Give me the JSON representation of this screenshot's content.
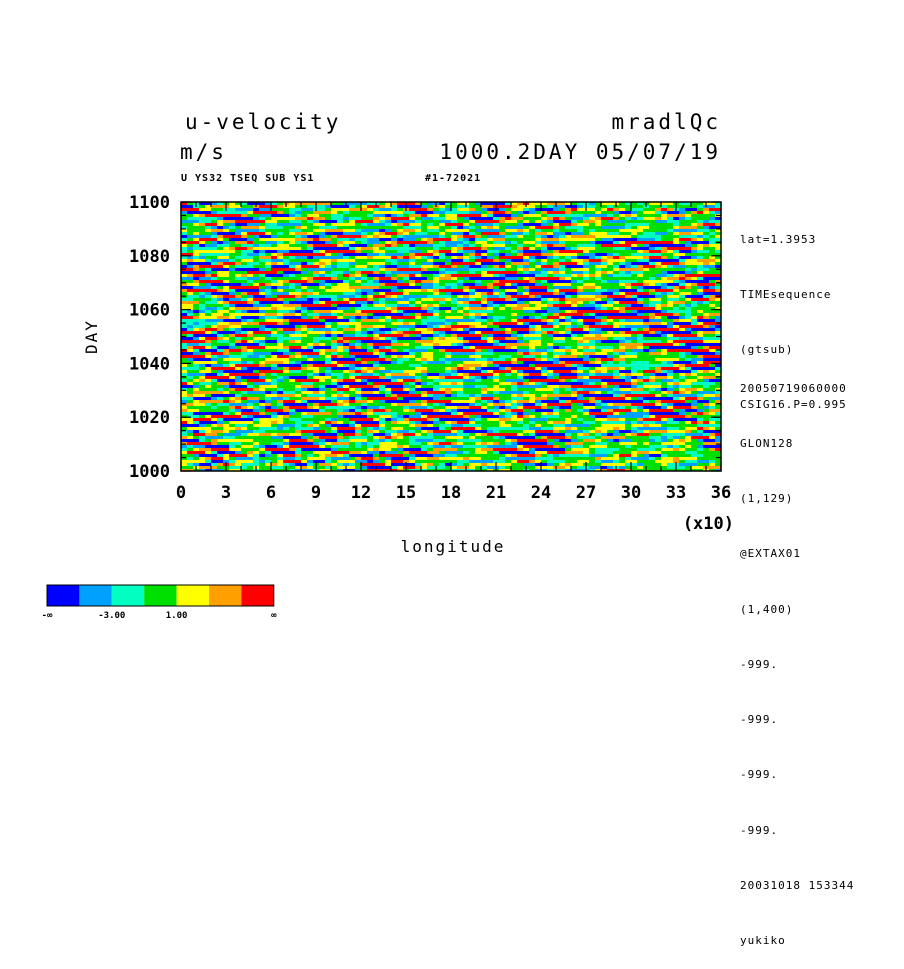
{
  "header": {
    "variable": "u-velocity",
    "run_name": "mradlQc",
    "units": "m/s",
    "time_stamp": "1000.2DAY 05/07/19",
    "sub_label": "U YS32 TSEQ SUB YS1",
    "range_label": "#1-72021"
  },
  "side_info": {
    "top_lines": [
      "lat=1.3953",
      "TIMEsequence",
      "(gtsub)",
      "CSIG16.P=0.995"
    ],
    "bottom_lines": [
      "20050719060000",
      "GLON128",
      "(1,129)",
      "@EXTAX01",
      "(1,400)",
      "-999.",
      "-999.",
      "-999.",
      "-999.",
      "20031018 153344",
      "yukiko"
    ]
  },
  "colors": {
    "levels": [
      "#0000ff",
      "#00a0ff",
      "#00ffc0",
      "#00e000",
      "#ffff00",
      "#ffa000",
      "#ff0000"
    ]
  },
  "chart_data": {
    "type": "heatmap",
    "title": "u-velocity",
    "xlabel": "longitude",
    "ylabel": "DAY",
    "x_multiplier": "(x10)",
    "xlim": [
      0,
      36
    ],
    "ylim": [
      1000,
      1100
    ],
    "x_ticks": [
      "0",
      "3",
      "6",
      "9",
      "12",
      "15",
      "18",
      "21",
      "24",
      "27",
      "30",
      "33",
      "36"
    ],
    "y_ticks": [
      "1000",
      "1020",
      "1040",
      "1060",
      "1080",
      "1100"
    ],
    "colorbar": {
      "labels": [
        "-∞",
        "-3.00",
        "1.00",
        "∞"
      ],
      "colors": [
        "#0000ff",
        "#00a0ff",
        "#00ffc0",
        "#00e000",
        "#ffff00",
        "#ffa000",
        "#ff0000"
      ]
    }
  }
}
